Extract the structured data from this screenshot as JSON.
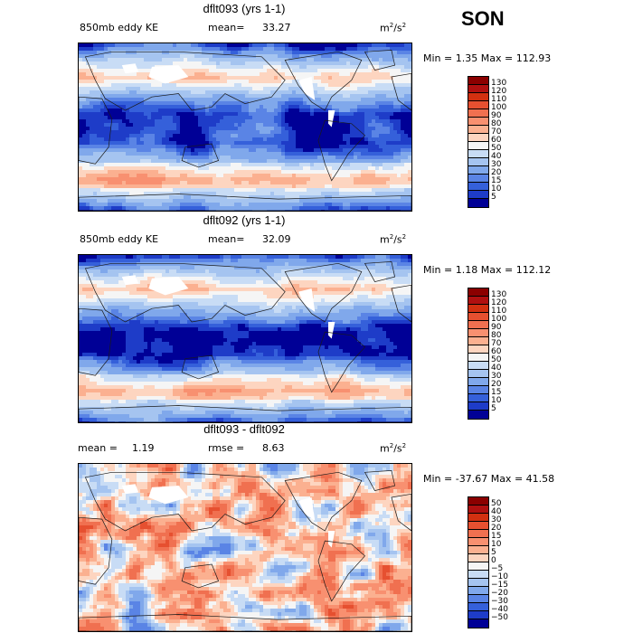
{
  "season": "SON",
  "chart_data": [
    {
      "type": "heatmap",
      "title": "dflt093 (yrs 1-1)",
      "field_label": "850mb eddy KE",
      "mean_label": "mean=",
      "mean": "33.27",
      "units": "m²/s²",
      "min_label": "Min =",
      "min": "1.35",
      "max_label": "Max =",
      "max": "112.93",
      "colorbar_levels": [
        "130",
        "120",
        "110",
        "100",
        "90",
        "80",
        "70",
        "60",
        "50",
        "40",
        "30",
        "20",
        "15",
        "10",
        "5"
      ],
      "colors": [
        "#8b0000",
        "#b01010",
        "#d23010",
        "#e65030",
        "#f07050",
        "#f89070",
        "#fbb090",
        "#fdd5c0",
        "#f5f5f5",
        "#c8dcf5",
        "#a5c4f0",
        "#80a8eb",
        "#5a84e5",
        "#3560da",
        "#1e3cc8",
        "#000096"
      ]
    },
    {
      "type": "heatmap",
      "title": "dflt092 (yrs 1-1)",
      "field_label": "850mb eddy KE",
      "mean_label": "mean=",
      "mean": "32.09",
      "units": "m²/s²",
      "min_label": "Min =",
      "min": "1.18",
      "max_label": "Max =",
      "max": "112.12",
      "colorbar_levels": [
        "130",
        "120",
        "110",
        "100",
        "90",
        "80",
        "70",
        "60",
        "50",
        "40",
        "30",
        "20",
        "15",
        "10",
        "5"
      ],
      "colors": [
        "#8b0000",
        "#b01010",
        "#d23010",
        "#e65030",
        "#f07050",
        "#f89070",
        "#fbb090",
        "#fdd5c0",
        "#f5f5f5",
        "#c8dcf5",
        "#a5c4f0",
        "#80a8eb",
        "#5a84e5",
        "#3560da",
        "#1e3cc8",
        "#000096"
      ]
    },
    {
      "type": "heatmap",
      "title": "dflt093 - dflt092",
      "mean_label": "mean =",
      "mean": "1.19",
      "rmse_label": "rmse =",
      "rmse": "8.63",
      "units": "m²/s²",
      "min_label": "Min =",
      "min": "-37.67",
      "max_label": "Max =",
      "max": "41.58",
      "colorbar_levels": [
        "50",
        "40",
        "30",
        "20",
        "15",
        "10",
        "5",
        "0",
        "−5",
        "−10",
        "−15",
        "−20",
        "−30",
        "−40",
        "−50"
      ],
      "colors": [
        "#8b0000",
        "#b01010",
        "#d23010",
        "#e65030",
        "#f07050",
        "#f89070",
        "#fbb090",
        "#fdd5c0",
        "#f5f5f5",
        "#c8dcf5",
        "#a5c4f0",
        "#80a8eb",
        "#5a84e5",
        "#3560da",
        "#1e3cc8",
        "#000096"
      ]
    }
  ]
}
